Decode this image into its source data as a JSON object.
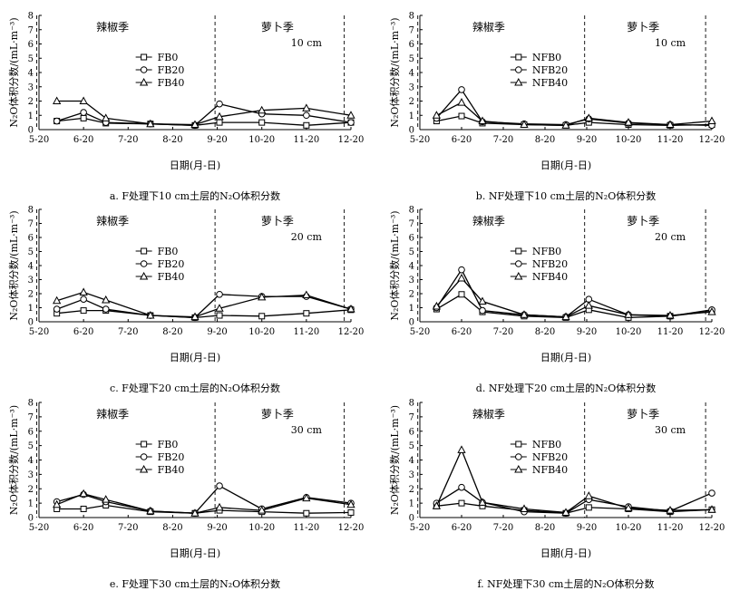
{
  "figure": {
    "ylabel": "N₂O体积分数/(mL·m⁻³)",
    "xlabel": "日期(月-日)",
    "season_labels": [
      "辣椒季",
      "萝卜季"
    ],
    "x_tick_labels": [
      "5-20",
      "6-20",
      "7-20",
      "8-20",
      "9-20",
      "10-20",
      "11-20",
      "12-20"
    ],
    "y_tick_labels": [
      "0",
      "1",
      "2",
      "3",
      "4",
      "5",
      "6",
      "7",
      "8"
    ]
  },
  "chart_data": [
    {
      "type": "line",
      "caption": "a. F处理下10 cm土层的N₂O体积分数",
      "depth": "10 cm",
      "ylim": [
        0,
        8
      ],
      "series": [
        {
          "name": "FB0",
          "marker": "square",
          "x": [
            0.4,
            1.0,
            1.5,
            2.5,
            3.5,
            4.05,
            5.0,
            6.0,
            7.0
          ],
          "values": [
            0.6,
            0.8,
            0.45,
            0.4,
            0.3,
            0.5,
            0.5,
            0.3,
            0.5
          ]
        },
        {
          "name": "FB20",
          "marker": "circle",
          "x": [
            0.4,
            1.0,
            1.5,
            2.5,
            3.5,
            4.05,
            5.0,
            6.0,
            7.0
          ],
          "values": [
            0.6,
            1.2,
            0.5,
            0.4,
            0.3,
            1.8,
            1.1,
            1.0,
            0.5
          ]
        },
        {
          "name": "FB40",
          "marker": "triangle",
          "x": [
            0.4,
            1.0,
            1.5,
            2.5,
            3.5,
            4.05,
            5.0,
            6.0,
            7.0
          ],
          "values": [
            2.0,
            2.0,
            0.8,
            0.4,
            0.35,
            0.9,
            1.35,
            1.5,
            1.0
          ]
        }
      ]
    },
    {
      "type": "line",
      "caption": "b. NF处理下10 cm土层的N₂O体积分数",
      "depth": "10 cm",
      "ylim": [
        0,
        8
      ],
      "series": [
        {
          "name": "NFB0",
          "marker": "square",
          "x": [
            0.4,
            1.0,
            1.5,
            2.5,
            3.5,
            4.05,
            5.0,
            6.0,
            7.0
          ],
          "values": [
            0.6,
            0.95,
            0.45,
            0.35,
            0.3,
            0.5,
            0.35,
            0.3,
            0.35
          ]
        },
        {
          "name": "NFB20",
          "marker": "circle",
          "x": [
            0.4,
            1.0,
            1.5,
            2.5,
            3.5,
            4.05,
            5.0,
            6.0,
            7.0
          ],
          "values": [
            0.8,
            2.8,
            0.55,
            0.4,
            0.35,
            0.75,
            0.45,
            0.35,
            0.3
          ]
        },
        {
          "name": "NFB40",
          "marker": "triangle",
          "x": [
            0.4,
            1.0,
            1.5,
            2.5,
            3.5,
            4.05,
            5.0,
            6.0,
            7.0
          ],
          "values": [
            1.0,
            1.9,
            0.6,
            0.35,
            0.3,
            0.8,
            0.5,
            0.35,
            0.6
          ]
        }
      ]
    },
    {
      "type": "line",
      "caption": "c. F处理下20 cm土层的N₂O体积分数",
      "depth": "20 cm",
      "ylim": [
        0,
        8
      ],
      "series": [
        {
          "name": "FB0",
          "marker": "square",
          "x": [
            0.4,
            1.0,
            1.5,
            2.5,
            3.5,
            4.05,
            5.0,
            6.0,
            7.0
          ],
          "values": [
            0.6,
            0.8,
            0.8,
            0.45,
            0.3,
            0.45,
            0.4,
            0.6,
            0.85
          ]
        },
        {
          "name": "FB20",
          "marker": "circle",
          "x": [
            0.4,
            1.0,
            1.5,
            2.5,
            3.5,
            4.05,
            5.0,
            6.0,
            7.0
          ],
          "values": [
            0.9,
            1.6,
            0.9,
            0.45,
            0.3,
            1.95,
            1.8,
            1.8,
            0.9
          ]
        },
        {
          "name": "FB40",
          "marker": "triangle",
          "x": [
            0.4,
            1.0,
            1.5,
            2.5,
            3.5,
            4.05,
            5.0,
            6.0,
            7.0
          ],
          "values": [
            1.5,
            2.1,
            1.55,
            0.45,
            0.35,
            0.95,
            1.75,
            1.9,
            0.9
          ]
        }
      ]
    },
    {
      "type": "line",
      "caption": "d. NF处理下20 cm土层的N₂O体积分数",
      "depth": "20 cm",
      "ylim": [
        0,
        8
      ],
      "series": [
        {
          "name": "NFB0",
          "marker": "square",
          "x": [
            0.4,
            1.0,
            1.5,
            2.5,
            3.5,
            4.05,
            5.0,
            6.0,
            7.0
          ],
          "values": [
            0.9,
            1.95,
            0.7,
            0.4,
            0.3,
            0.85,
            0.3,
            0.4,
            0.75
          ]
        },
        {
          "name": "NFB20",
          "marker": "circle",
          "x": [
            0.4,
            1.0,
            1.5,
            2.5,
            3.5,
            4.05,
            5.0,
            6.0,
            7.0
          ],
          "values": [
            1.0,
            3.7,
            0.8,
            0.5,
            0.35,
            1.6,
            0.5,
            0.4,
            0.85
          ]
        },
        {
          "name": "NFB40",
          "marker": "triangle",
          "x": [
            0.4,
            1.0,
            1.5,
            2.5,
            3.5,
            4.05,
            5.0,
            6.0,
            7.0
          ],
          "values": [
            1.1,
            3.1,
            1.45,
            0.5,
            0.35,
            1.15,
            0.5,
            0.45,
            0.7
          ]
        }
      ]
    },
    {
      "type": "line",
      "caption": "e. F处理下30 cm土层的N₂O体积分数",
      "depth": "30 cm",
      "ylim": [
        0,
        8
      ],
      "series": [
        {
          "name": "FB0",
          "marker": "square",
          "x": [
            0.4,
            1.0,
            1.5,
            2.5,
            3.5,
            4.05,
            5.0,
            6.0,
            7.0
          ],
          "values": [
            0.6,
            0.6,
            0.85,
            0.4,
            0.3,
            0.5,
            0.4,
            0.3,
            0.35
          ]
        },
        {
          "name": "FB20",
          "marker": "circle",
          "x": [
            0.4,
            1.0,
            1.5,
            2.5,
            3.5,
            4.05,
            5.0,
            6.0,
            7.0
          ],
          "values": [
            1.1,
            1.6,
            1.1,
            0.45,
            0.3,
            2.2,
            0.6,
            1.4,
            1.0
          ]
        },
        {
          "name": "FB40",
          "marker": "triangle",
          "x": [
            0.4,
            1.0,
            1.5,
            2.5,
            3.5,
            4.05,
            5.0,
            6.0,
            7.0
          ],
          "values": [
            0.9,
            1.65,
            1.25,
            0.45,
            0.3,
            0.7,
            0.5,
            1.35,
            0.9
          ]
        }
      ]
    },
    {
      "type": "line",
      "caption": "f. NF处理下30 cm土层的N₂O体积分数",
      "depth": "30 cm",
      "ylim": [
        0,
        8
      ],
      "series": [
        {
          "name": "NFB0",
          "marker": "square",
          "x": [
            0.4,
            1.0,
            1.5,
            2.5,
            3.5,
            4.05,
            5.0,
            6.0,
            7.0
          ],
          "values": [
            0.8,
            1.0,
            0.8,
            0.5,
            0.3,
            0.7,
            0.6,
            0.4,
            0.55
          ]
        },
        {
          "name": "NFB20",
          "marker": "circle",
          "x": [
            0.4,
            1.0,
            1.5,
            2.5,
            3.5,
            4.05,
            5.0,
            6.0,
            7.0
          ],
          "values": [
            1.0,
            2.1,
            1.05,
            0.4,
            0.3,
            1.25,
            0.75,
            0.45,
            1.7
          ]
        },
        {
          "name": "NFB40",
          "marker": "triangle",
          "x": [
            0.4,
            1.0,
            1.5,
            2.5,
            3.5,
            4.05,
            5.0,
            6.0,
            7.0
          ],
          "values": [
            0.8,
            4.7,
            1.05,
            0.6,
            0.35,
            1.5,
            0.65,
            0.5,
            0.55
          ]
        }
      ]
    }
  ]
}
